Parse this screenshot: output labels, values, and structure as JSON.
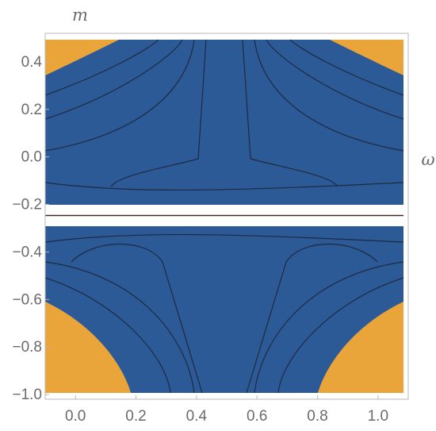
{
  "chart_data": {
    "type": "contour",
    "xlabel": "ω",
    "ylabel": "m",
    "xlim": [
      -0.1,
      1.1
    ],
    "ylim": [
      -1.02,
      0.52
    ],
    "x_ticks": [
      "0.0",
      "0.2",
      "0.4",
      "0.6",
      "0.8",
      "1.0"
    ],
    "x_tick_values": [
      0.0,
      0.2,
      0.4,
      0.6,
      0.8,
      1.0
    ],
    "y_ticks": [
      "−1.0",
      "−0.8",
      "−0.6",
      "−0.4",
      "−0.2",
      "0.0",
      "0.2",
      "0.4"
    ],
    "y_tick_values": [
      -1.0,
      -0.8,
      -0.6,
      -0.4,
      -0.2,
      0.0,
      0.2,
      0.4
    ],
    "singular_line_m": -0.25,
    "color_scheme": {
      "low": "#2c5a97",
      "mid": "#8c8aa5",
      "high": "#e9a43a",
      "highest": "#fbf0c0"
    },
    "frame_color": "#b8b8b8",
    "background": "#ffffff"
  }
}
